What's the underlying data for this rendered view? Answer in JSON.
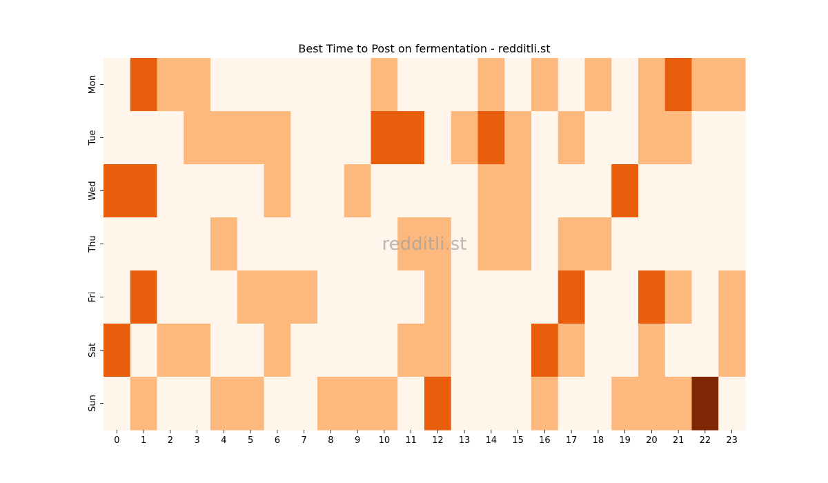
{
  "colors": {
    "level0": "#fff5eb",
    "level1": "#fdb97d",
    "level2": "#e95e0d",
    "level3": "#7f2704",
    "text": "#000000"
  },
  "watermark": "redditli.st",
  "chart_data": {
    "type": "heatmap",
    "title": "Best Time to Post on fermentation - redditli.st",
    "xlabel": "",
    "ylabel": "",
    "x": [
      "0",
      "1",
      "2",
      "3",
      "4",
      "5",
      "6",
      "7",
      "8",
      "9",
      "10",
      "11",
      "12",
      "13",
      "14",
      "15",
      "16",
      "17",
      "18",
      "19",
      "20",
      "21",
      "22",
      "23"
    ],
    "y": [
      "Mon",
      "Tue",
      "Wed",
      "Thu",
      "Fri",
      "Sat",
      "Sun"
    ],
    "values": [
      [
        0,
        2,
        1,
        1,
        0,
        0,
        0,
        0,
        0,
        0,
        1,
        0,
        0,
        0,
        1,
        0,
        1,
        0,
        1,
        0,
        1,
        2,
        1,
        1
      ],
      [
        0,
        0,
        0,
        1,
        1,
        1,
        1,
        0,
        0,
        0,
        2,
        2,
        0,
        1,
        2,
        1,
        0,
        1,
        0,
        0,
        1,
        1,
        0,
        0
      ],
      [
        2,
        2,
        0,
        0,
        0,
        0,
        1,
        0,
        0,
        1,
        0,
        0,
        0,
        0,
        1,
        1,
        0,
        0,
        0,
        2,
        0,
        0,
        0,
        0
      ],
      [
        0,
        0,
        0,
        0,
        1,
        0,
        0,
        0,
        0,
        0,
        0,
        1,
        1,
        0,
        1,
        1,
        0,
        1,
        1,
        0,
        0,
        0,
        0,
        0
      ],
      [
        0,
        2,
        0,
        0,
        0,
        1,
        1,
        1,
        0,
        0,
        0,
        0,
        1,
        0,
        0,
        0,
        0,
        2,
        0,
        0,
        2,
        1,
        0,
        1
      ],
      [
        2,
        0,
        1,
        1,
        0,
        0,
        1,
        0,
        0,
        0,
        0,
        1,
        1,
        0,
        0,
        0,
        2,
        1,
        0,
        0,
        1,
        0,
        0,
        1
      ],
      [
        0,
        1,
        0,
        0,
        1,
        1,
        0,
        0,
        1,
        1,
        1,
        0,
        2,
        0,
        0,
        0,
        1,
        0,
        0,
        1,
        1,
        1,
        3,
        0
      ]
    ],
    "grid": false,
    "legend": "none"
  }
}
